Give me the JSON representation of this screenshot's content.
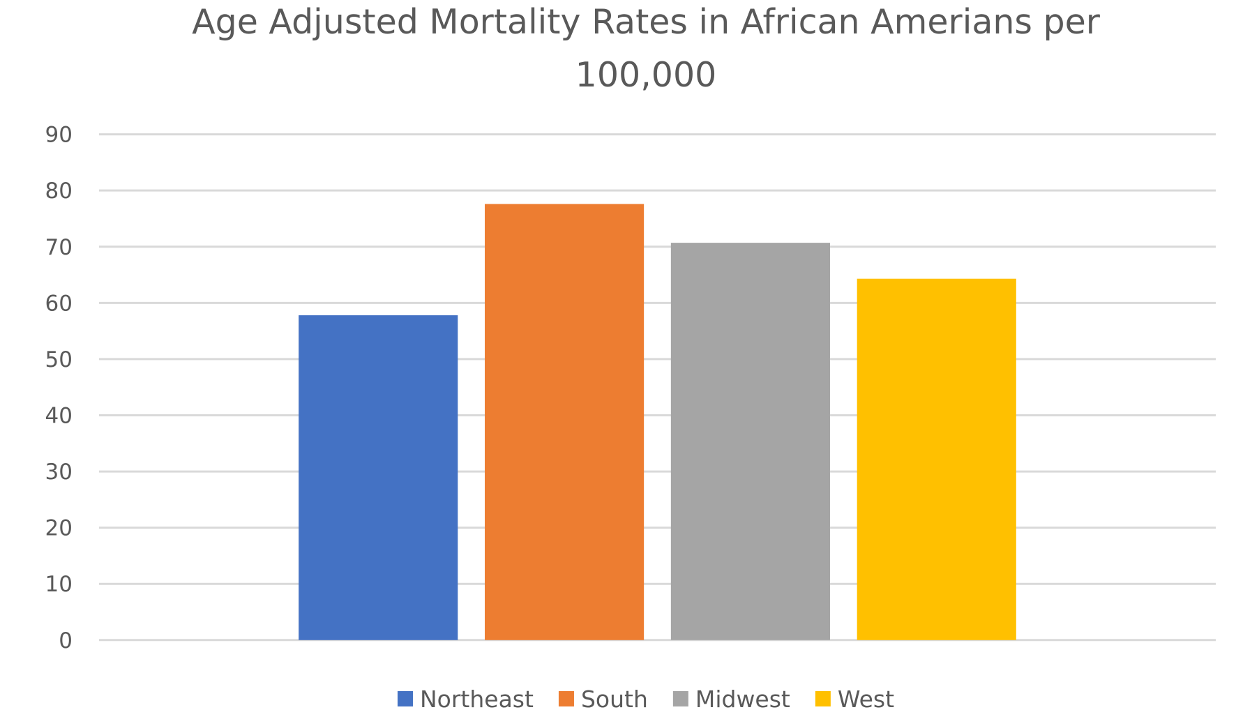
{
  "chart_data": {
    "type": "bar",
    "title": "Age Adjusted Mortality Rates in African Amerians per 100,000",
    "title_lines": [
      "Age Adjusted Mortality Rates in African Amerians per",
      "100,000"
    ],
    "xlabel": "",
    "ylabel": "",
    "ylim": [
      0,
      90
    ],
    "yticks": [
      0,
      10,
      20,
      30,
      40,
      50,
      60,
      70,
      80,
      90
    ],
    "grid": true,
    "legend_position": "bottom",
    "categories": [
      ""
    ],
    "series": [
      {
        "name": "Northeast",
        "values": [
          57.8
        ],
        "color": "#4472C4"
      },
      {
        "name": "South",
        "values": [
          77.6
        ],
        "color": "#ED7D31"
      },
      {
        "name": "Midwest",
        "values": [
          70.7
        ],
        "color": "#A5A5A5"
      },
      {
        "name": "West",
        "values": [
          64.3
        ],
        "color": "#FFC000"
      }
    ]
  }
}
